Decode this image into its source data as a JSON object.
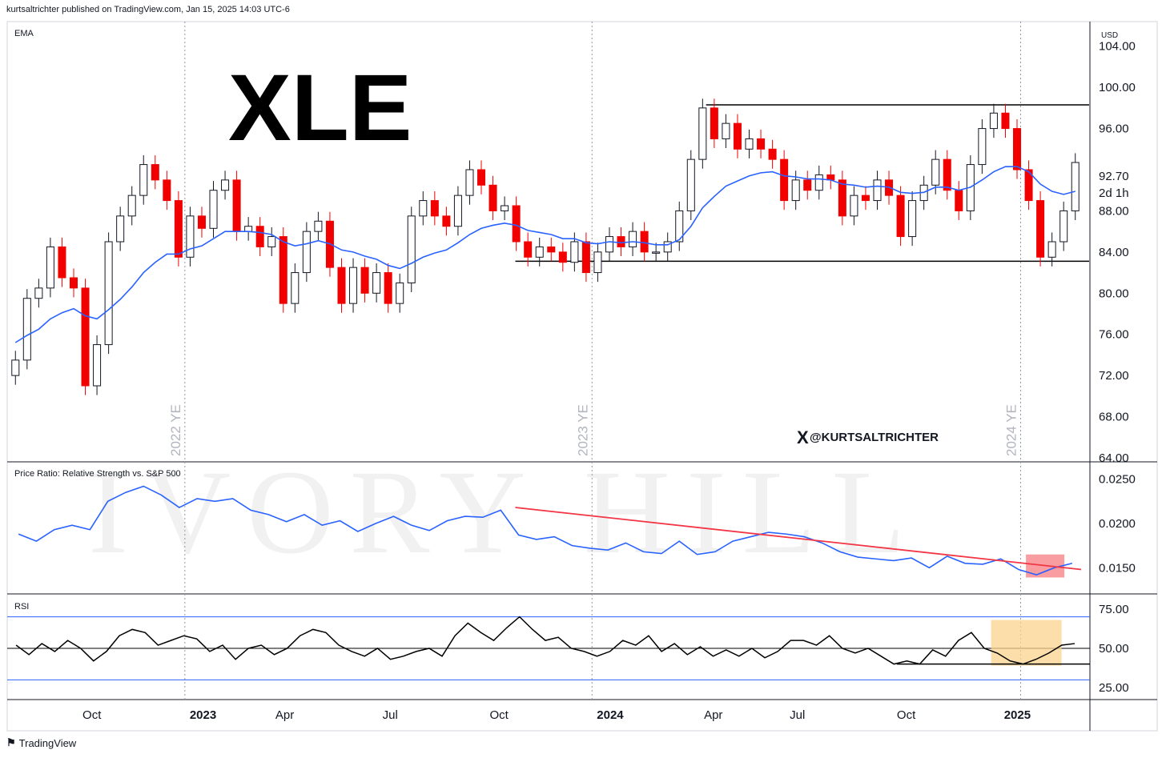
{
  "header": {
    "publisher": "kurtsaltrichter published on TradingView.com, Jan 15, 2025 14:03 UTC-6"
  },
  "footer": {
    "logo": "TradingView"
  },
  "watermark": "IVORY HILL",
  "colors": {
    "up": "#ffffff",
    "down": "#f20000",
    "ema": "#2962ff",
    "trend": "#f23645",
    "rsi": "#000000",
    "pink": "#f77c80",
    "orange": "#fbd38d"
  },
  "chart_data": [
    {
      "type": "candlestick",
      "title": "XLE",
      "indicator_label": "EMA",
      "currency": "USD",
      "interval": "2d 1h",
      "last_price": "92.70",
      "handle": "@KURTSALTRICHTER",
      "year_end_labels": [
        "2022 YE",
        "2023 YE",
        "2024 YE"
      ],
      "ylim": [
        64,
        106
      ],
      "y_ticks": [
        "104.00",
        "100.00",
        "96.00",
        "88.00",
        "84.00",
        "80.00",
        "76.00",
        "72.00",
        "68.00",
        "64.00"
      ],
      "x_ticks": [
        "Oct",
        "2023",
        "Apr",
        "Jul",
        "Oct",
        "2024",
        "Apr",
        "Jul",
        "Oct",
        "2025"
      ],
      "x_tick_pos": [
        4,
        9,
        13,
        18,
        23,
        28,
        33,
        37,
        42,
        47
      ],
      "resistance": 98.3,
      "support": 83.1,
      "resistance_x": [
        32.5,
        50
      ],
      "support_x": [
        23.6,
        50
      ],
      "close": [
        73.5,
        79.5,
        80.5,
        84.5,
        81.5,
        80.5,
        71,
        75,
        85,
        87.5,
        89.5,
        92.5,
        91,
        89,
        83.5,
        87.5,
        86.3,
        90,
        91,
        86,
        86.5,
        84.5,
        85.5,
        79,
        82,
        86,
        87,
        82.5,
        79,
        82.5,
        80,
        82,
        79,
        81,
        87.5,
        89,
        87.5,
        86.5,
        89.5,
        92,
        90.5,
        88,
        88.5,
        85,
        83.5,
        84.5,
        84,
        83,
        85,
        82,
        84,
        85.5,
        84.5,
        86,
        84,
        84,
        85,
        88,
        93,
        98,
        95,
        96.5,
        94,
        95,
        94,
        93,
        89,
        91,
        90,
        91.5,
        91,
        87.5,
        89.5,
        89,
        91,
        89.5,
        85.5,
        89,
        90.5,
        93,
        90,
        88,
        92.5,
        96,
        97.5,
        96,
        92,
        89,
        83.5,
        85,
        88,
        92.7
      ],
      "ema": [
        75.2,
        75.9,
        76.5,
        77.5,
        78.1,
        78.5,
        77.8,
        77.5,
        78.4,
        79.4,
        80.6,
        82,
        83,
        83.8,
        83.8,
        84.3,
        84.6,
        85.3,
        86,
        86,
        86,
        85.9,
        85.7,
        85,
        84.6,
        84.8,
        85.1,
        84.8,
        84.2,
        84,
        83.6,
        83.3,
        82.7,
        82.4,
        82.9,
        83.5,
        83.9,
        84.2,
        84.9,
        85.7,
        86.3,
        86.6,
        86.8,
        86.6,
        86.1,
        85.9,
        85.7,
        85.3,
        85.3,
        84.9,
        84.8,
        85,
        84.9,
        85,
        84.9,
        84.7,
        84.7,
        85.2,
        86.5,
        88.3,
        89.4,
        90.4,
        90.9,
        91.4,
        91.7,
        91.8,
        91.4,
        91.3,
        91.1,
        91.1,
        91,
        90.6,
        90.5,
        90.3,
        90.4,
        90.3,
        89.8,
        89.7,
        89.8,
        90.3,
        90.3,
        90,
        90.3,
        91,
        91.8,
        92.3,
        92.3,
        91.8,
        90.6,
        89.9,
        89.6,
        89.9
      ]
    },
    {
      "type": "line",
      "title": "Price Ratio: Relative Strength vs. S&P 500",
      "ylim": [
        0.0125,
        0.0265
      ],
      "y_ticks": [
        "0.0250",
        "0.0200",
        "0.0150"
      ],
      "values": [
        0.0188,
        0.018,
        0.0193,
        0.0198,
        0.0193,
        0.0225,
        0.0235,
        0.0242,
        0.0232,
        0.0218,
        0.0228,
        0.0225,
        0.0228,
        0.0215,
        0.021,
        0.0202,
        0.021,
        0.0198,
        0.0203,
        0.0191,
        0.02,
        0.0208,
        0.0198,
        0.0192,
        0.0203,
        0.0208,
        0.0207,
        0.0215,
        0.0187,
        0.0182,
        0.0185,
        0.0175,
        0.0172,
        0.017,
        0.0178,
        0.0168,
        0.0166,
        0.018,
        0.0165,
        0.0168,
        0.018,
        0.0185,
        0.019,
        0.0188,
        0.0185,
        0.0178,
        0.0168,
        0.0162,
        0.016,
        0.0158,
        0.0161,
        0.015,
        0.0163,
        0.0155,
        0.0154,
        0.016,
        0.0148,
        0.0142,
        0.015,
        0.0155
      ],
      "trendline": {
        "from": [
          0.0218,
          23.6
        ],
        "to": [
          0.0148,
          50
        ]
      }
    },
    {
      "type": "line",
      "title": "RSI",
      "ylim": [
        20,
        82
      ],
      "y_ticks": [
        "75.00",
        "50.00",
        "25.00"
      ],
      "bands": [
        70,
        30
      ],
      "midline": 50,
      "values": [
        52,
        46,
        53,
        48,
        55,
        50,
        42,
        48,
        58,
        62,
        60,
        52,
        55,
        58,
        56,
        48,
        52,
        43,
        50,
        52,
        46,
        50,
        58,
        62,
        60,
        52,
        48,
        45,
        50,
        43,
        45,
        48,
        50,
        45,
        58,
        66,
        60,
        55,
        63,
        70,
        62,
        55,
        57,
        50,
        48,
        45,
        48,
        55,
        52,
        58,
        48,
        53,
        46,
        51,
        45,
        49,
        45,
        50,
        44,
        48,
        55,
        55,
        52,
        58,
        50,
        47,
        50,
        45,
        40,
        42,
        40,
        49,
        45,
        55,
        60,
        50,
        47,
        42,
        40,
        43,
        47,
        52,
        53
      ]
    }
  ]
}
